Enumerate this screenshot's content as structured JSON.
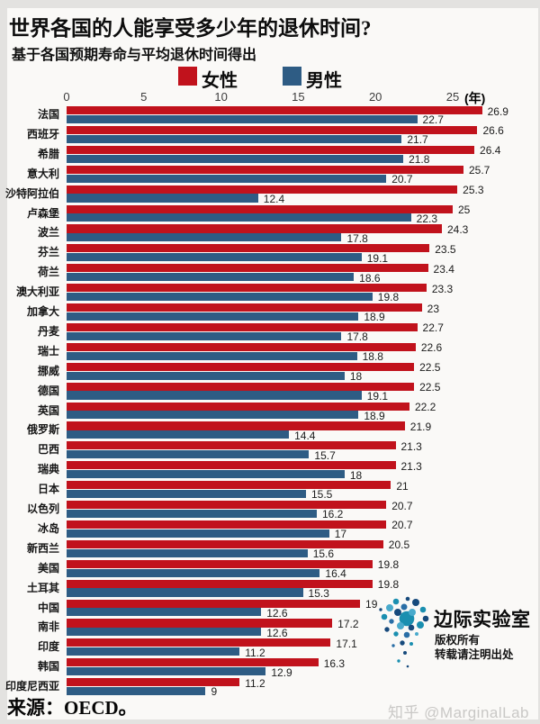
{
  "chart_data": {
    "type": "bar",
    "orientation": "horizontal",
    "title": "世界各国的人能享受多少年的退休时间?",
    "subtitle": "基于各国预期寿命与平均退休时间得出",
    "unit_label": "(年)",
    "xlim": [
      0,
      27.5
    ],
    "ticks": [
      0,
      5,
      10,
      15,
      20,
      25
    ],
    "grid": false,
    "legend_position": "top",
    "legend": [
      {
        "name": "女性",
        "color": "#c1121c"
      },
      {
        "name": "男性",
        "color": "#2e5c84"
      }
    ],
    "categories": [
      "法国",
      "西班牙",
      "希腊",
      "意大利",
      "沙特阿拉伯",
      "卢森堡",
      "波兰",
      "芬兰",
      "荷兰",
      "澳大利亚",
      "加拿大",
      "丹麦",
      "瑞士",
      "挪威",
      "德国",
      "英国",
      "俄罗斯",
      "巴西",
      "瑞典",
      "日本",
      "以色列",
      "冰岛",
      "新西兰",
      "美国",
      "土耳其",
      "中国",
      "南非",
      "印度",
      "韩国",
      "印度尼西亚"
    ],
    "series": [
      {
        "name": "女性",
        "color": "#c1121c",
        "values": [
          26.9,
          26.6,
          26.4,
          25.7,
          25.3,
          25,
          24.3,
          23.5,
          23.4,
          23.3,
          23,
          22.7,
          22.6,
          22.5,
          22.5,
          22.2,
          21.9,
          21.3,
          21.3,
          21,
          20.7,
          20.7,
          20.5,
          19.8,
          19.8,
          19,
          17.2,
          17.1,
          16.3,
          11.2
        ]
      },
      {
        "name": "男性",
        "color": "#2e5c84",
        "values": [
          22.7,
          21.7,
          21.8,
          20.7,
          12.4,
          22.3,
          17.8,
          19.1,
          18.6,
          19.8,
          18.9,
          17.8,
          18.8,
          18,
          19.1,
          18.9,
          14.4,
          15.7,
          18,
          15.5,
          16.2,
          17,
          15.6,
          16.4,
          15.3,
          12.6,
          12.6,
          11.2,
          12.9,
          9
        ]
      }
    ],
    "source": "来源：OECD。"
  },
  "watermark": "知乎 @MarginalLab",
  "logo": {
    "title": "边际实验室",
    "line1": "版权所有",
    "line2": "转载请注明出处"
  },
  "logo_dot_colors": {
    "navy": "#174a7c",
    "teal": "#1a8fb0",
    "sky": "#49aacc",
    "mid": "#2a6ea6"
  }
}
